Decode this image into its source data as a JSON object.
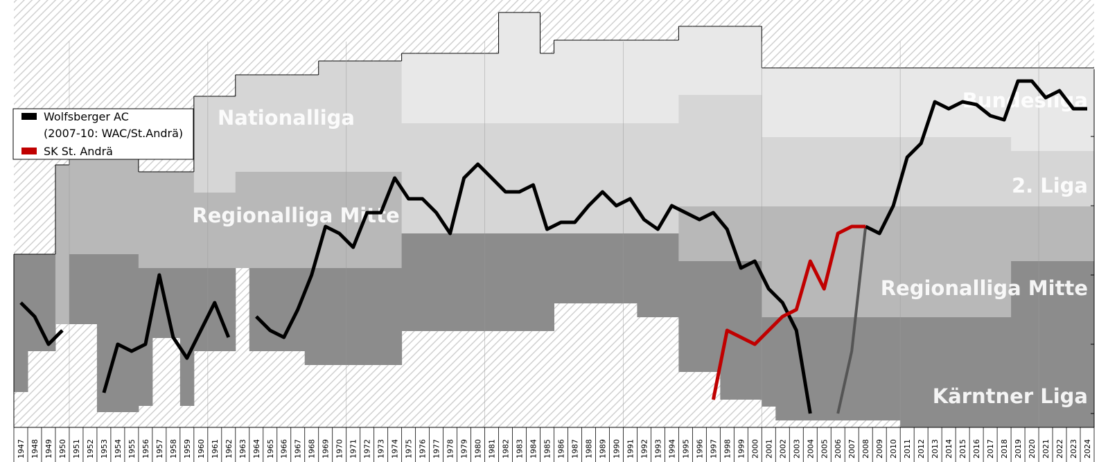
{
  "chart_data": {
    "type": "line",
    "title": "",
    "xlabel": "",
    "ylabel": "",
    "years": [
      1947,
      1948,
      1949,
      1950,
      1951,
      1952,
      1953,
      1954,
      1955,
      1956,
      1957,
      1958,
      1959,
      1960,
      1961,
      1962,
      1963,
      1964,
      1965,
      1966,
      1967,
      1968,
      1969,
      1970,
      1971,
      1972,
      1973,
      1974,
      1975,
      1976,
      1977,
      1978,
      1979,
      1980,
      1981,
      1982,
      1983,
      1984,
      1985,
      1986,
      1987,
      1988,
      1989,
      1990,
      1991,
      1992,
      1993,
      1994,
      1995,
      1996,
      1997,
      1998,
      1999,
      2000,
      2001,
      2002,
      2003,
      2004,
      2005,
      2006,
      2007,
      2008,
      2009,
      2010,
      2011,
      2012,
      2013,
      2014,
      2015,
      2016,
      2017,
      2018,
      2019,
      2020,
      2021,
      2022,
      2023,
      2024
    ],
    "league_tiers": [
      {
        "name": "Bundesliga",
        "color": "#e8e8e8"
      },
      {
        "name": "2. Liga",
        "color": "#d6d6d6"
      },
      {
        "name": "Regionalliga Mitte",
        "color": "#b8b8b8"
      },
      {
        "name": "Kärntner Liga",
        "color": "#8c8c8c"
      }
    ],
    "tier_labels": {
      "left": [
        "Nationalliga",
        "Regionalliga Mitte"
      ],
      "right": [
        "Bundesliga",
        "2. Liga",
        "Regionalliga Mitte",
        "Kärntner Liga"
      ]
    },
    "series": [
      {
        "name": "Wolfsberger AC",
        "name2": "(2007-10: WAC/St.Andrä)",
        "color": "#000000",
        "segments": [
          [
            [
              1947,
              30.5
            ],
            [
              1948,
              29.5
            ],
            [
              1949,
              27.5
            ],
            [
              1950,
              28.5
            ]
          ],
          [
            [
              1953,
              24
            ],
            [
              1954,
              27.5
            ],
            [
              1955,
              27
            ],
            [
              1956,
              27.5
            ],
            [
              1957,
              32.5
            ],
            [
              1958,
              28
            ],
            [
              1959,
              26.5
            ],
            [
              1960,
              28.5
            ],
            [
              1961,
              30.5
            ],
            [
              1962,
              28
            ]
          ],
          [
            [
              1964,
              29.5
            ],
            [
              1965,
              28.5
            ],
            [
              1966,
              28
            ],
            [
              1967,
              30
            ],
            [
              1968,
              32.5
            ],
            [
              1969,
              36
            ],
            [
              1970,
              35.5
            ],
            [
              1971,
              34.5
            ],
            [
              1972,
              37
            ],
            [
              1973,
              37
            ],
            [
              1974,
              39.5
            ],
            [
              1975,
              38
            ],
            [
              1976,
              38
            ],
            [
              1977,
              37
            ],
            [
              1978,
              35.5
            ],
            [
              1979,
              39.5
            ],
            [
              1980,
              40.5
            ],
            [
              1981,
              39.5
            ],
            [
              1982,
              38.5
            ],
            [
              1983,
              38.5
            ],
            [
              1984,
              39
            ],
            [
              1985,
              35.8
            ],
            [
              1986,
              36.3
            ],
            [
              1987,
              36.3
            ],
            [
              1988,
              37.5
            ],
            [
              1989,
              38.5
            ],
            [
              1990,
              37.5
            ],
            [
              1991,
              38
            ],
            [
              1992,
              36.5
            ],
            [
              1993,
              35.8
            ],
            [
              1994,
              37.5
            ],
            [
              1995,
              37
            ],
            [
              1996,
              36.5
            ],
            [
              1997,
              37
            ],
            [
              1998,
              35.8
            ],
            [
              1999,
              33
            ],
            [
              2000,
              33.5
            ],
            [
              2001,
              31.5
            ],
            [
              2002,
              30.5
            ],
            [
              2003,
              28.5
            ],
            [
              2004,
              22.5
            ]
          ],
          [
            [
              2006,
              22.5
            ],
            [
              2007,
              27
            ],
            [
              2008,
              36
            ]
          ],
          [
            [
              2008,
              36
            ],
            [
              2009,
              35.5
            ],
            [
              2010,
              37.5
            ],
            [
              2011,
              41
            ],
            [
              2012,
              42
            ],
            [
              2013,
              45
            ],
            [
              2014,
              44.5
            ],
            [
              2015,
              45
            ],
            [
              2016,
              44.8
            ],
            [
              2017,
              44
            ],
            [
              2018,
              43.7
            ],
            [
              2019,
              46.5
            ],
            [
              2020,
              46.5
            ],
            [
              2021,
              45.3
            ],
            [
              2022,
              45.8
            ],
            [
              2023,
              44.5
            ],
            [
              2024,
              44.5
            ]
          ]
        ]
      },
      {
        "name": "SK St. Andrä",
        "color": "#c00000",
        "segments": [
          [
            [
              1997,
              23.5
            ],
            [
              1998,
              28.5
            ],
            [
              1999,
              28
            ],
            [
              2000,
              27.5
            ],
            [
              2001,
              28.5
            ],
            [
              2002,
              29.5
            ],
            [
              2003,
              30
            ],
            [
              2004,
              33.5
            ],
            [
              2005,
              31.5
            ],
            [
              2006,
              35.5
            ],
            [
              2007,
              36
            ],
            [
              2008,
              36
            ]
          ]
        ]
      }
    ]
  },
  "legend": {
    "items": [
      {
        "label": "Wolfsberger AC",
        "color": "#000000"
      },
      {
        "label": "(2007-10: WAC/St.Andrä)",
        "color": ""
      },
      {
        "label": "SK St. Andrä",
        "color": "#c00000"
      }
    ]
  }
}
